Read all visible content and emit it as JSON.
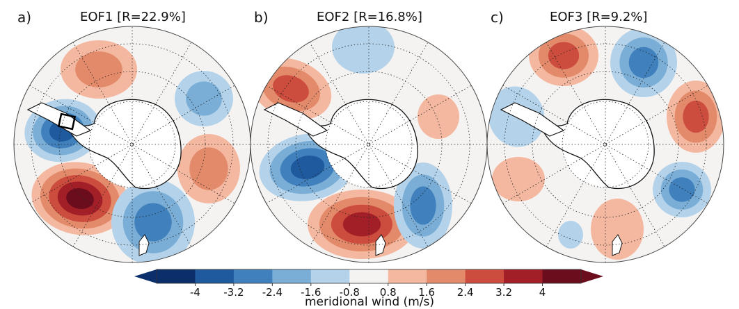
{
  "panels": [
    {
      "id": "a",
      "label": "a)",
      "title": "EOF1 [R=22.9%]"
    },
    {
      "id": "b",
      "label": "b)",
      "title": "EOF2 [R=16.8%]"
    },
    {
      "id": "c",
      "label": "c)",
      "title": "EOF3 [R=9.2%]"
    }
  ],
  "colorbar": {
    "label": "meridional wind (m/s)",
    "tick_labels": [
      "-4",
      "-3.2",
      "-2.4",
      "-1.6",
      "-0.8",
      "0.8",
      "1.6",
      "2.4",
      "3.2",
      "4"
    ],
    "colors": [
      "#0b2f6b",
      "#1f5a9e",
      "#3f80bd",
      "#7aaed6",
      "#b4d3ea",
      "#f5f3f1",
      "#f4b8a0",
      "#e38a6b",
      "#cc4c3e",
      "#a31f28",
      "#6b0d1d"
    ],
    "extend": "both"
  },
  "map": {
    "projection": "south-polar-stereographic",
    "background_color": "#f5f3f1",
    "antarctica_color": "#ffffff",
    "coastline_color": "#111111",
    "gridline_style": "dotted"
  },
  "annotations": {
    "box": {
      "panel": "a",
      "description": "black rectangle marking region"
    }
  }
}
